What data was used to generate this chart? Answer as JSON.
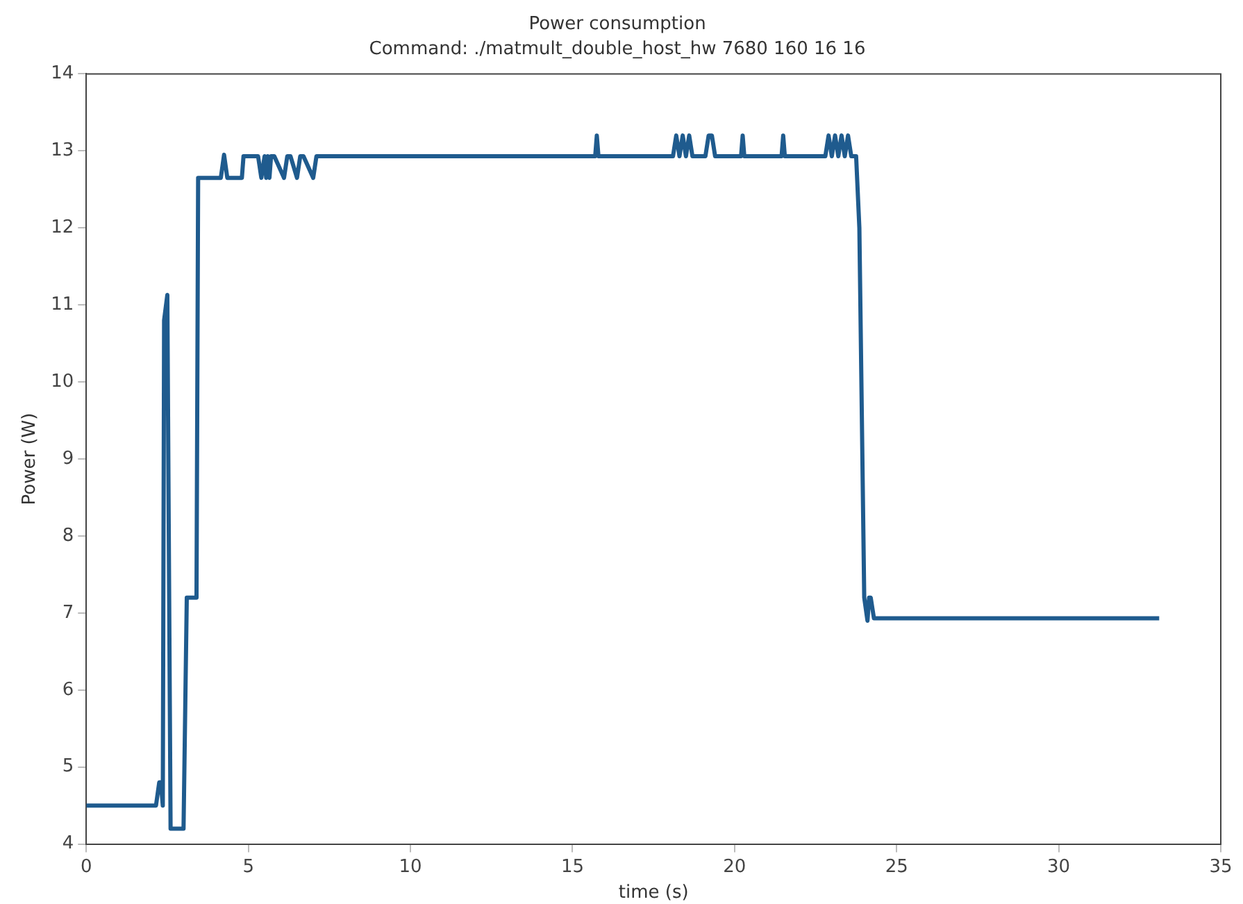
{
  "chart_data": {
    "type": "line",
    "title": "Power consumption",
    "subtitle": "Command: ./matmult_double_host_hw 7680 160 16 16",
    "xlabel": "time (s)",
    "ylabel": "Power (W)",
    "series": [
      {
        "color": "#1f5b8e",
        "x": [
          0,
          2.15,
          2.25,
          2.3,
          2.36,
          2.4,
          2.5,
          2.6,
          3.0,
          3.1,
          3.4,
          3.45,
          4.15,
          4.25,
          4.35,
          4.8,
          4.85,
          5.3,
          5.4,
          5.5,
          5.55,
          5.6,
          5.65,
          5.7,
          5.8,
          6.1,
          6.2,
          6.3,
          6.5,
          6.6,
          6.7,
          7.0,
          7.1,
          7.2,
          15.7,
          15.75,
          15.8,
          18.1,
          18.2,
          18.3,
          18.4,
          18.5,
          18.6,
          18.7,
          19.1,
          19.2,
          19.3,
          19.4,
          20.2,
          20.25,
          20.3,
          21.45,
          21.5,
          21.55,
          22.8,
          22.9,
          23.0,
          23.1,
          23.2,
          23.3,
          23.4,
          23.5,
          23.6,
          23.75,
          23.85,
          24.0,
          24.1,
          24.15,
          24.2,
          24.3,
          24.35,
          33.1
        ],
        "values": [
          4.5,
          4.5,
          4.8,
          4.8,
          4.5,
          10.8,
          11.13,
          4.2,
          4.2,
          7.2,
          7.2,
          12.65,
          12.65,
          12.95,
          12.65,
          12.65,
          12.93,
          12.93,
          12.65,
          12.93,
          12.65,
          12.93,
          12.65,
          12.93,
          12.93,
          12.65,
          12.93,
          12.93,
          12.65,
          12.93,
          12.93,
          12.65,
          12.93,
          12.93,
          12.93,
          13.2,
          12.93,
          12.93,
          13.2,
          12.93,
          13.2,
          12.93,
          13.2,
          12.93,
          12.93,
          13.2,
          13.2,
          12.93,
          12.93,
          13.2,
          12.93,
          12.93,
          13.2,
          12.93,
          12.93,
          13.2,
          12.93,
          13.2,
          12.93,
          13.2,
          12.93,
          13.2,
          12.93,
          12.93,
          12.0,
          7.2,
          6.9,
          7.2,
          7.2,
          6.93,
          6.93,
          6.93
        ]
      }
    ],
    "xlim": [
      0,
      35
    ],
    "xticks": [
      0,
      5,
      10,
      15,
      20,
      25,
      30,
      35
    ],
    "ylim": [
      4,
      14
    ],
    "yticks": [
      4,
      5,
      6,
      7,
      8,
      9,
      10,
      11,
      12,
      13,
      14
    ],
    "grid": false,
    "legend": false,
    "marker": "none",
    "line_style": "solid"
  }
}
